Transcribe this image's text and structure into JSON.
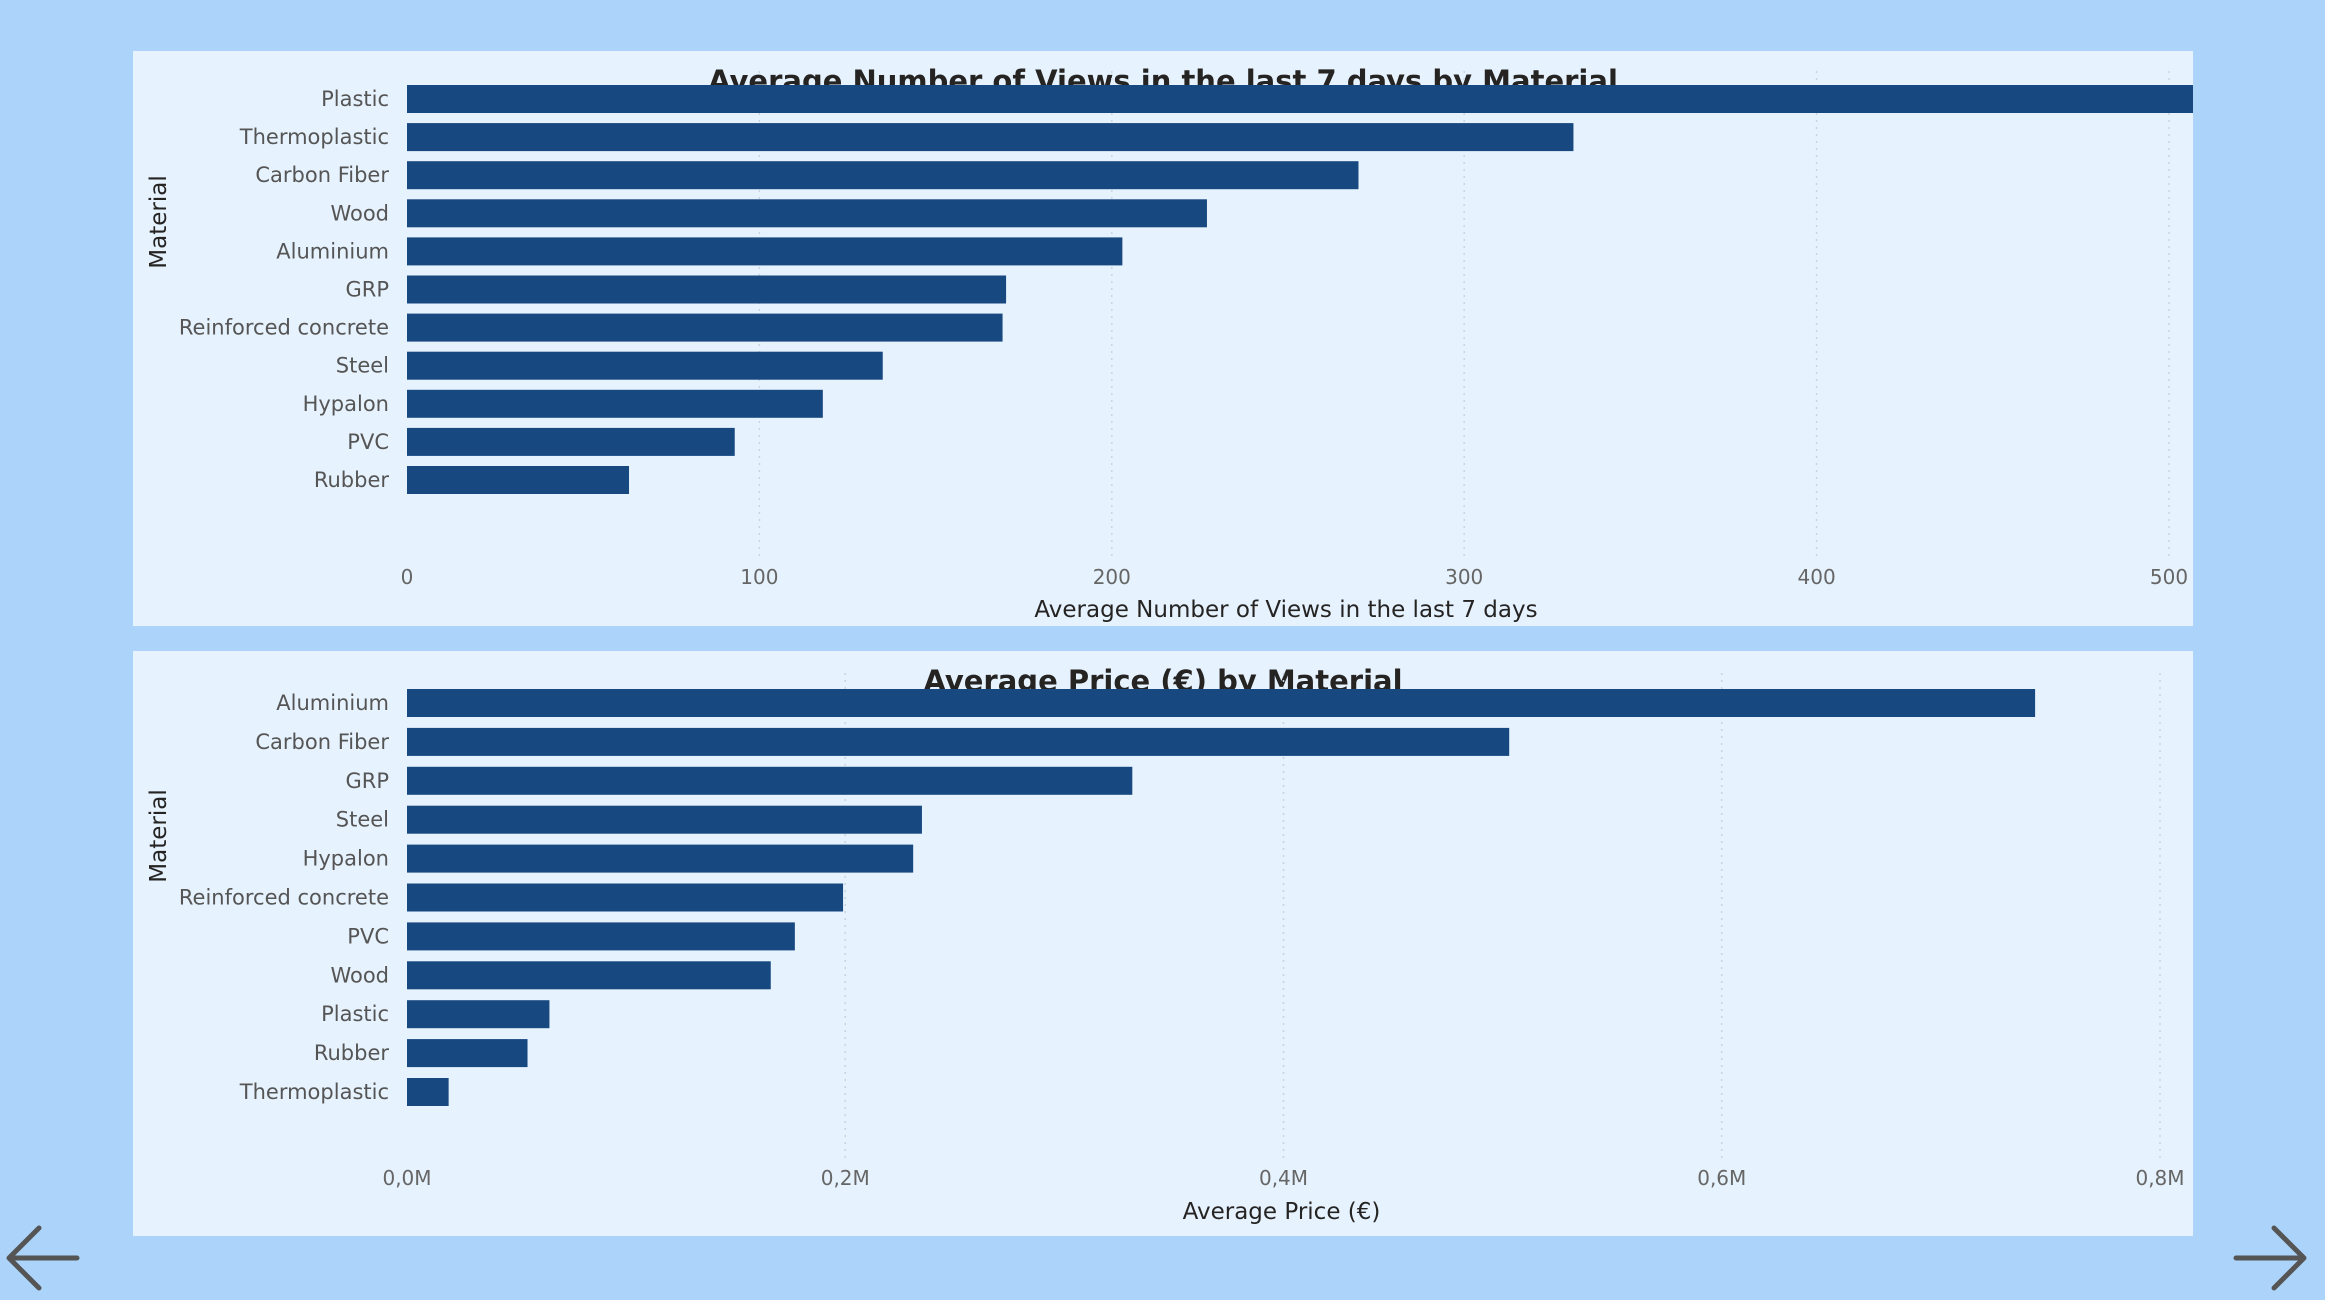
{
  "navigation": {
    "previous": "previous-page-arrow",
    "next": "next-page-arrow"
  },
  "colors": {
    "background": "#acd4fb",
    "panel": "#e6f2fd",
    "bar": "#17487f"
  },
  "chart_data": [
    {
      "type": "bar",
      "orientation": "horizontal",
      "title": "Average Number of Views in the last 7 days by Material",
      "xlabel": "Average Number of Views in the last 7 days",
      "ylabel": "Material",
      "categories": [
        "Plastic",
        "Thermoplastic",
        "Carbon Fiber",
        "Wood",
        "Aluminium",
        "GRP",
        "Reinforced concrete",
        "Steel",
        "Hypalon",
        "PVC",
        "Rubber"
      ],
      "values": [
        529,
        331,
        270,
        227,
        203,
        170,
        169,
        135,
        118,
        93,
        63
      ],
      "xlim": [
        0,
        520
      ],
      "xticks": [
        0,
        100,
        200,
        300,
        400,
        500
      ],
      "xtick_labels": [
        "0",
        "100",
        "200",
        "300",
        "400",
        "500"
      ],
      "grid": true
    },
    {
      "type": "bar",
      "orientation": "horizontal",
      "title": "Average Price (€) by Material",
      "xlabel": "Average Price (€)",
      "ylabel": "Material",
      "categories": [
        "Aluminium",
        "Carbon Fiber",
        "GRP",
        "Steel",
        "Hypalon",
        "Reinforced concrete",
        "PVC",
        "Wood",
        "Plastic",
        "Rubber",
        "Thermoplastic"
      ],
      "values": [
        743000,
        503000,
        331000,
        235000,
        231000,
        199000,
        177000,
        166000,
        65000,
        55000,
        19000
      ],
      "xlim": [
        0,
        800000
      ],
      "xticks": [
        0,
        200000,
        400000,
        600000,
        800000
      ],
      "xtick_labels": [
        "0,0M",
        "0,2M",
        "0,4M",
        "0,6M",
        "0,8M"
      ],
      "grid": true
    }
  ]
}
